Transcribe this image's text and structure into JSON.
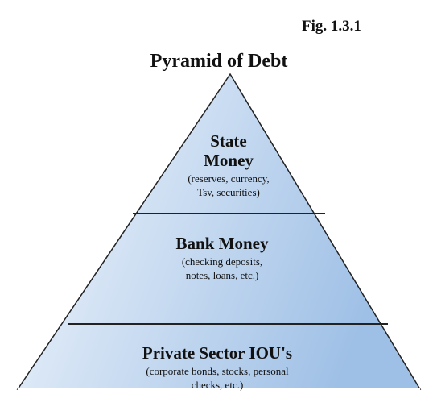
{
  "figure_label": "Fig. 1.3.1",
  "title": "Pyramid of Debt",
  "tiers": [
    {
      "name": [
        "State",
        "Money"
      ],
      "description": [
        "(reserves, currency,",
        "Tsv, securities)"
      ]
    },
    {
      "name": [
        "Bank Money"
      ],
      "description": [
        "(checking deposits,",
        "notes, loans, etc.)"
      ]
    },
    {
      "name": [
        "Private Sector IOU's"
      ],
      "description": [
        "(corporate bonds, stocks, personal",
        "checks, etc.)"
      ]
    }
  ]
}
